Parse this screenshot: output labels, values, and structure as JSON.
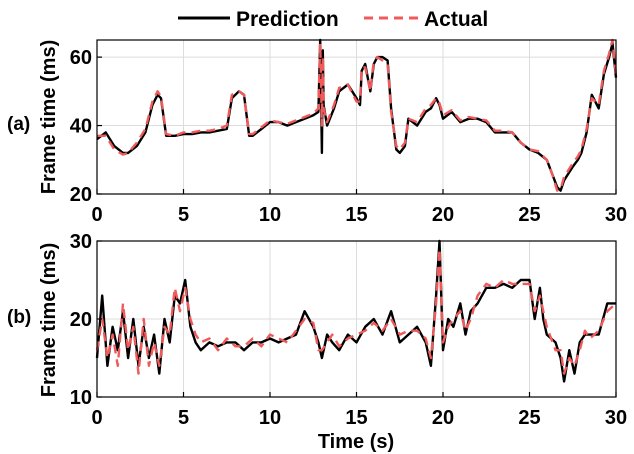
{
  "legend": {
    "entries": [
      {
        "label": "Prediction",
        "color": "#000000",
        "style": "solid"
      },
      {
        "label": "Actual",
        "color": "#f05a5a",
        "style": "dashed"
      }
    ]
  },
  "chart_data": [
    {
      "type": "line",
      "panel_label": "(a)",
      "xlabel": "",
      "ylabel": "Frame time (ms)",
      "xlim": [
        0,
        30
      ],
      "ylim": [
        20,
        65
      ],
      "xticks": [
        0,
        5,
        10,
        15,
        20,
        25,
        30
      ],
      "yticks": [
        20,
        40,
        60
      ],
      "grid": true,
      "series": [
        {
          "name": "Prediction",
          "x": [
            0,
            0.5,
            1.0,
            1.5,
            1.8,
            2.3,
            2.8,
            3.2,
            3.5,
            3.7,
            4.0,
            4.5,
            5.0,
            5.5,
            6.0,
            6.5,
            7.0,
            7.5,
            7.8,
            8.2,
            8.5,
            8.8,
            9.0,
            9.5,
            10.0,
            10.5,
            11.0,
            11.5,
            12.0,
            12.5,
            12.8,
            12.9,
            13.0,
            13.05,
            13.1,
            13.3,
            13.7,
            14.0,
            14.5,
            15.0,
            15.2,
            15.3,
            15.5,
            15.8,
            16.0,
            16.2,
            16.5,
            16.8,
            17.0,
            17.3,
            17.5,
            17.8,
            18.0,
            18.5,
            19.0,
            19.3,
            19.6,
            19.8,
            20.0,
            20.5,
            21.0,
            21.5,
            22.0,
            22.5,
            23.0,
            23.5,
            24.0,
            24.5,
            25.0,
            25.5,
            26.0,
            26.3,
            26.6,
            26.8,
            27.0,
            27.5,
            27.8,
            28.0,
            28.3,
            28.6,
            29.0,
            29.3,
            29.6,
            29.8,
            30.0
          ],
          "y": [
            36,
            38,
            34,
            32,
            32,
            34,
            38,
            46,
            49,
            48,
            37,
            37,
            37.5,
            37.5,
            38,
            38,
            38.5,
            39,
            48,
            50,
            49,
            37,
            37,
            39,
            41,
            41,
            40,
            41,
            42,
            43,
            44,
            65,
            32,
            62,
            46,
            40,
            45,
            50,
            52,
            48,
            46,
            56,
            58,
            50,
            58,
            60,
            60,
            59,
            45,
            33,
            32,
            34,
            42,
            40,
            44,
            45,
            48,
            46,
            42,
            44,
            41,
            42,
            42,
            41,
            38,
            38,
            38,
            35,
            33,
            32,
            30,
            26,
            22,
            21,
            24,
            28,
            30,
            32,
            38,
            49,
            45,
            55,
            60,
            64,
            54
          ]
        },
        {
          "name": "Actual",
          "x": [
            0,
            0.5,
            1.0,
            1.5,
            1.8,
            2.3,
            2.8,
            3.2,
            3.5,
            3.7,
            4.0,
            4.5,
            5.0,
            5.5,
            6.0,
            6.5,
            7.0,
            7.5,
            7.8,
            8.2,
            8.5,
            8.8,
            9.0,
            9.5,
            10.0,
            10.5,
            11.0,
            11.5,
            12.0,
            12.5,
            12.8,
            12.9,
            13.0,
            13.05,
            13.1,
            13.3,
            13.7,
            14.0,
            14.5,
            15.0,
            15.2,
            15.3,
            15.5,
            15.8,
            16.0,
            16.2,
            16.5,
            16.8,
            17.0,
            17.3,
            17.5,
            17.8,
            18.0,
            18.5,
            19.0,
            19.3,
            19.6,
            19.8,
            20.0,
            20.5,
            21.0,
            21.5,
            22.0,
            22.5,
            23.0,
            23.5,
            24.0,
            24.5,
            25.0,
            25.5,
            26.0,
            26.3,
            26.6,
            26.8,
            27.0,
            27.5,
            27.8,
            28.0,
            28.3,
            28.6,
            29.0,
            29.3,
            29.6,
            29.8,
            30.0
          ],
          "y": [
            37,
            37,
            33,
            31.5,
            32,
            35,
            39,
            47,
            50,
            48.5,
            37.5,
            37,
            38,
            38,
            38.5,
            38.5,
            39,
            40,
            49,
            50,
            49,
            37.5,
            37.5,
            39.5,
            41.5,
            41,
            40.5,
            41.5,
            42.5,
            43.5,
            45,
            64,
            40,
            60,
            45,
            41,
            46,
            51,
            52,
            47,
            47,
            57,
            57,
            50,
            59,
            60,
            59,
            58,
            44,
            34,
            33,
            35,
            42,
            41,
            45,
            46,
            48,
            46.5,
            43,
            44.5,
            41.5,
            42.5,
            42,
            41.5,
            38.5,
            38.5,
            38,
            35,
            33,
            32.5,
            30,
            26,
            21,
            21.5,
            25,
            29,
            31,
            33,
            39,
            48,
            46,
            56,
            61,
            65,
            55
          ]
        }
      ]
    },
    {
      "type": "line",
      "panel_label": "(b)",
      "xlabel": "Time (s)",
      "ylabel": "Frame time (ms)",
      "xlim": [
        0,
        30
      ],
      "ylim": [
        10,
        30
      ],
      "xticks": [
        0,
        5,
        10,
        15,
        20,
        25,
        30
      ],
      "yticks": [
        10,
        20,
        30
      ],
      "grid": true,
      "series": [
        {
          "name": "Prediction",
          "x": [
            0,
            0.3,
            0.6,
            0.9,
            1.2,
            1.5,
            1.8,
            2.1,
            2.4,
            2.7,
            3.0,
            3.3,
            3.6,
            3.9,
            4.2,
            4.5,
            4.8,
            5.1,
            5.4,
            5.7,
            6.0,
            6.5,
            7.0,
            7.5,
            8.0,
            8.5,
            9.0,
            9.5,
            10.0,
            10.5,
            11.0,
            11.5,
            12.0,
            12.5,
            12.8,
            13.0,
            13.3,
            13.6,
            14.0,
            14.5,
            15.0,
            15.5,
            16.0,
            16.5,
            17.0,
            17.5,
            18.0,
            18.5,
            19.0,
            19.3,
            19.6,
            19.8,
            20.0,
            20.3,
            20.6,
            21.0,
            21.3,
            21.6,
            22.0,
            22.5,
            23.0,
            23.5,
            24.0,
            24.5,
            25.0,
            25.3,
            25.6,
            25.8,
            26.0,
            26.5,
            26.8,
            27.0,
            27.3,
            27.6,
            27.9,
            28.2,
            28.5,
            29.0,
            29.5,
            30.0
          ],
          "y": [
            15,
            23,
            14,
            19,
            16,
            21,
            15,
            20,
            14,
            19,
            15,
            18,
            13,
            20,
            17,
            23,
            22,
            25,
            19,
            17,
            16,
            17,
            16.5,
            17,
            17,
            16,
            17,
            17,
            17.5,
            17,
            17.5,
            18,
            21,
            19,
            17,
            15,
            18,
            17,
            16,
            18,
            17,
            19,
            20,
            18,
            21,
            17,
            18,
            19,
            17,
            14,
            23,
            30,
            16,
            20,
            19,
            22,
            18,
            21,
            22,
            24,
            24,
            24.5,
            24,
            25,
            25,
            20,
            24,
            20,
            18,
            17,
            15,
            12,
            16,
            13,
            17,
            18,
            18,
            18,
            22,
            22
          ]
        },
        {
          "name": "Actual",
          "x": [
            0,
            0.3,
            0.6,
            0.9,
            1.2,
            1.5,
            1.8,
            2.1,
            2.4,
            2.7,
            3.0,
            3.3,
            3.6,
            3.9,
            4.2,
            4.5,
            4.8,
            5.1,
            5.4,
            5.7,
            6.0,
            6.5,
            7.0,
            7.5,
            8.0,
            8.5,
            9.0,
            9.5,
            10.0,
            10.5,
            11.0,
            11.5,
            12.0,
            12.5,
            12.8,
            13.0,
            13.3,
            13.6,
            14.0,
            14.5,
            15.0,
            15.5,
            16.0,
            16.5,
            17.0,
            17.5,
            18.0,
            18.5,
            19.0,
            19.3,
            19.6,
            19.8,
            20.0,
            20.3,
            20.6,
            21.0,
            21.3,
            21.6,
            22.0,
            22.5,
            23.0,
            23.5,
            24.0,
            24.5,
            25.0,
            25.3,
            25.6,
            25.8,
            26.0,
            26.5,
            26.8,
            27.0,
            27.3,
            27.6,
            27.9,
            28.2,
            28.5,
            29.0,
            29.5,
            30.0
          ],
          "y": [
            16,
            20,
            15,
            18,
            14,
            22,
            16,
            19,
            13,
            20,
            14,
            17,
            14,
            19,
            18,
            24,
            21,
            24,
            20,
            18,
            17,
            17.5,
            16,
            17.5,
            16.5,
            16.5,
            17.5,
            16.5,
            18,
            17.5,
            17,
            18.5,
            20,
            19.5,
            16,
            16,
            17,
            18,
            16.5,
            17.5,
            18,
            18.5,
            19.5,
            18.5,
            20,
            18,
            18.5,
            18.5,
            17.5,
            15,
            22,
            29,
            17,
            19,
            20,
            21,
            18.5,
            20,
            23,
            24.5,
            24,
            25,
            24.5,
            24.5,
            24.5,
            21,
            23,
            21,
            19,
            16,
            16,
            13,
            15,
            14,
            16,
            18.5,
            17.5,
            18.5,
            21,
            22
          ]
        }
      ]
    }
  ]
}
